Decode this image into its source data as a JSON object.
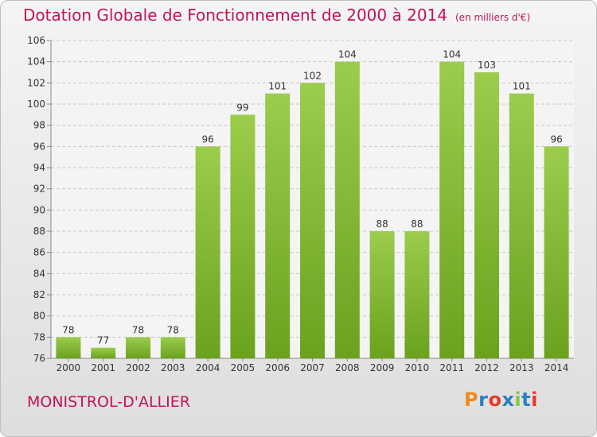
{
  "header": {
    "title": "Dotation Globale de Fonctionnement de 2000 à 2014",
    "unit": "(en milliers d'€)"
  },
  "footer": {
    "commune": "MONISTROL-D'ALLIER",
    "logo_text": "Proxiti"
  },
  "colors": {
    "title": "#c0145a",
    "bar_light": "#9ccc4c",
    "bar_dark": "#6aa21e",
    "logo": [
      "#f08a1c",
      "#2a7fc4",
      "#e53a2a",
      "#2a7fc4",
      "#8cc63f",
      "#2a7fc4",
      "#e53a2a"
    ]
  },
  "chart_data": {
    "type": "bar",
    "title": "Dotation Globale de Fonctionnement de 2000 à 2014",
    "unit": "(en milliers d'€)",
    "categories": [
      "2000",
      "2001",
      "2002",
      "2003",
      "2004",
      "2005",
      "2006",
      "2007",
      "2008",
      "2009",
      "2010",
      "2011",
      "2012",
      "2013",
      "2014"
    ],
    "values": [
      78,
      77,
      78,
      78,
      96,
      99,
      101,
      102,
      104,
      88,
      88,
      104,
      103,
      101,
      96
    ],
    "ylim": [
      76,
      106
    ],
    "yticks": [
      76,
      78,
      80,
      82,
      84,
      86,
      88,
      90,
      92,
      94,
      96,
      98,
      100,
      102,
      104,
      106
    ],
    "grid": true,
    "legend": "none"
  }
}
